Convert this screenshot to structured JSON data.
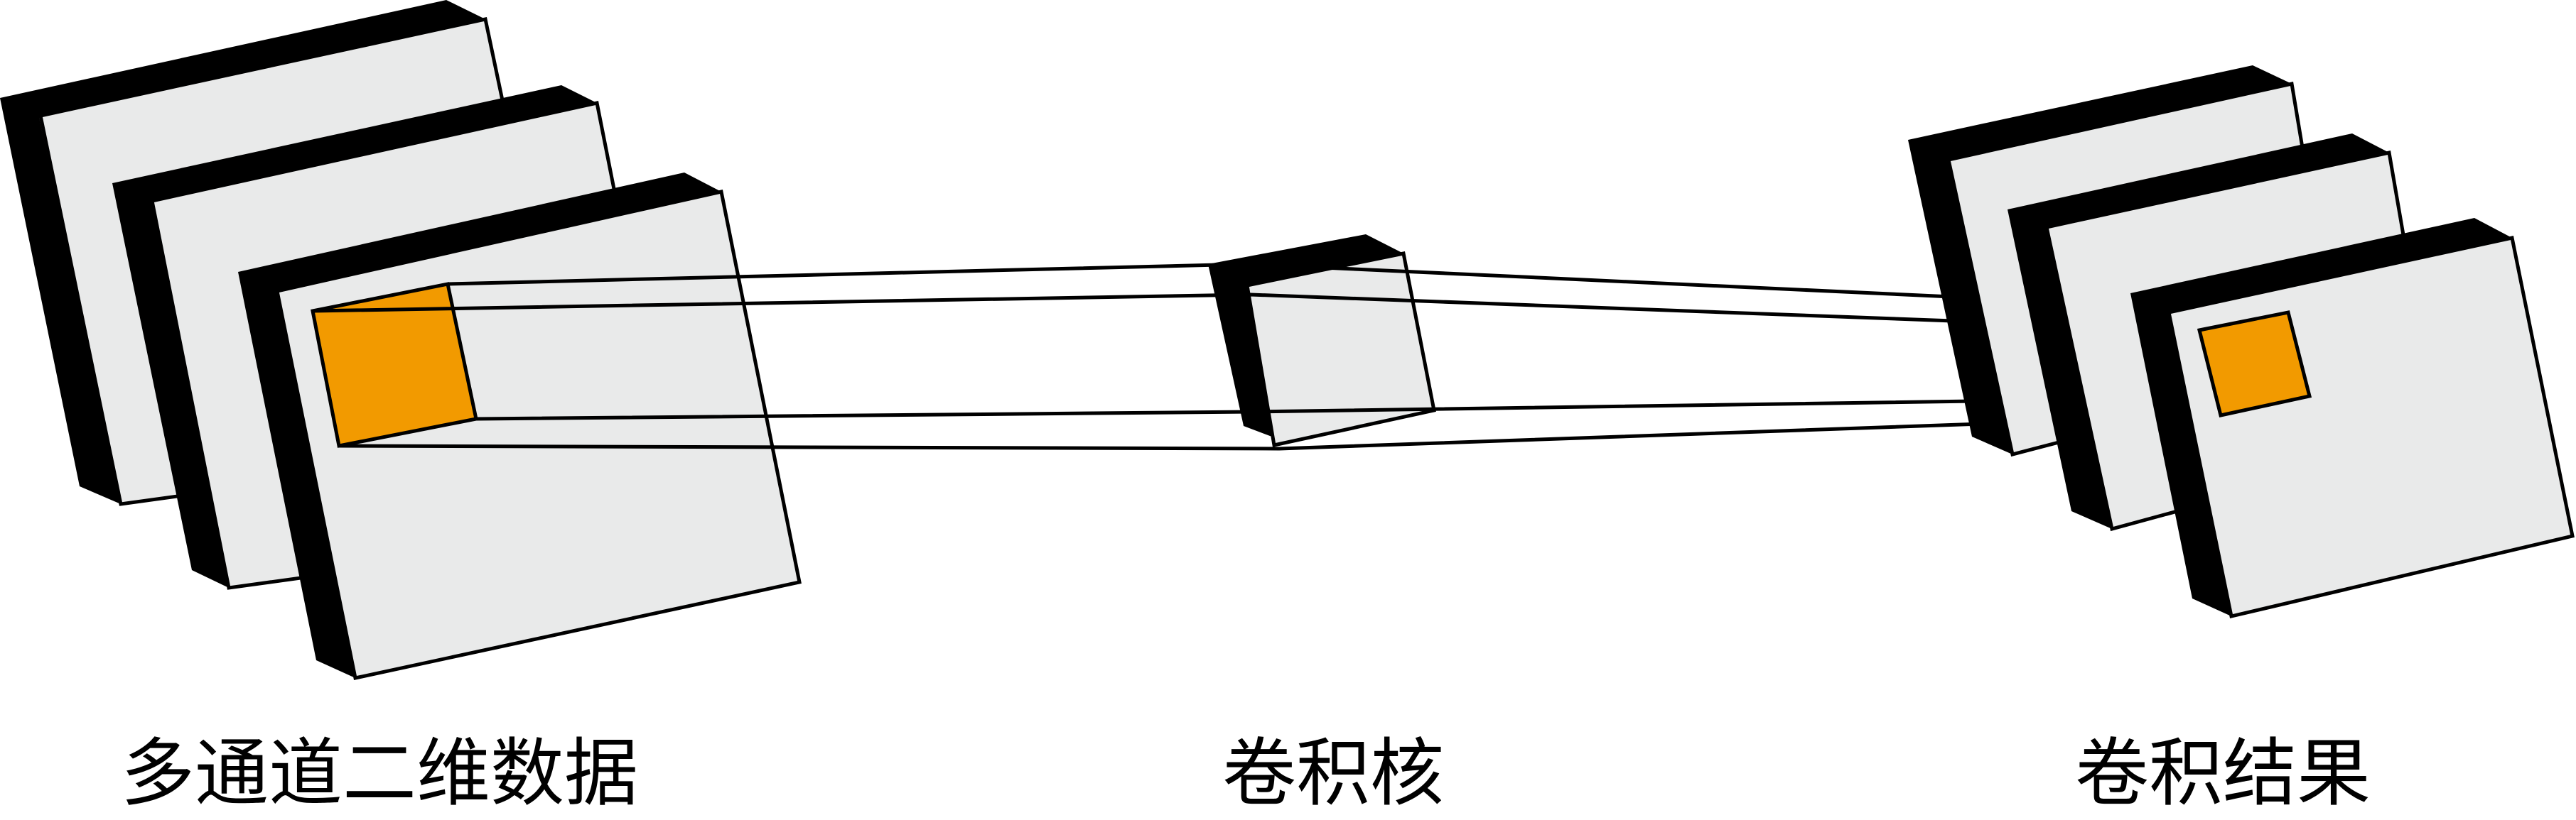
{
  "labels": {
    "input": "多通道二维数据",
    "kernel": "卷积核",
    "output": "卷积结果"
  },
  "colors": {
    "plane_face": "#e9eaea",
    "plane_edge": "#000000",
    "highlight": "#f29a00"
  }
}
